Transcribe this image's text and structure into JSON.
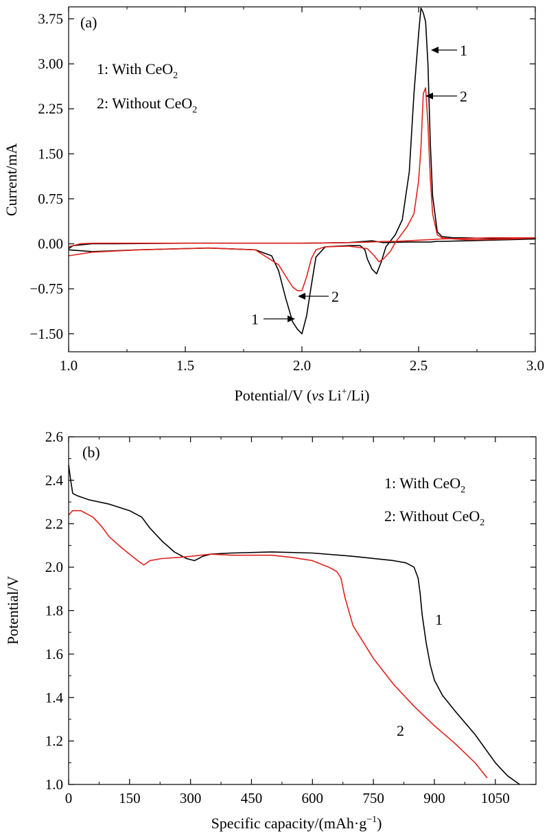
{
  "chart_data": [
    {
      "panel_label": "(a)",
      "type": "line",
      "xlabel": {
        "main": "Potential/V (",
        "italic": "vs",
        "mid": " Li",
        "sup": "+",
        "tail": "/Li)"
      },
      "ylabel": "Current/mA",
      "xlim": [
        1.0,
        3.0
      ],
      "ylim": [
        -1.8,
        3.95
      ],
      "xticks": [
        1.0,
        1.5,
        2.0,
        2.5,
        3.0
      ],
      "xtick_labels": [
        "1.0",
        "1.5",
        "2.0",
        "2.5",
        "3.0"
      ],
      "yticks": [
        -1.5,
        -0.75,
        0.0,
        0.75,
        1.5,
        2.25,
        3.0,
        3.75
      ],
      "ytick_labels": [
        "−1.50",
        "−0.75",
        "0.00",
        "0.75",
        "1.50",
        "2.25",
        "3.00",
        "3.75"
      ],
      "legend": [
        {
          "prefix": "1: With CeO",
          "sub": "2"
        },
        {
          "prefix": "2: Without CeO",
          "sub": "2"
        }
      ],
      "series": [
        {
          "label": "1",
          "color": "#000000",
          "x": [
            1.0,
            1.1,
            1.3,
            1.6,
            1.8,
            1.87,
            1.9,
            1.93,
            1.96,
            1.98,
            2.0,
            2.02,
            2.04,
            2.06,
            2.1,
            2.2,
            2.25,
            2.27,
            2.28,
            2.3,
            2.32,
            2.34,
            2.36,
            2.4,
            2.43,
            2.46,
            2.48,
            2.5,
            2.51,
            2.52,
            2.53,
            2.54,
            2.55,
            2.56,
            2.58,
            2.6,
            2.65,
            2.7,
            2.8,
            2.9,
            3.0,
            2.9,
            2.8,
            2.7,
            2.6,
            2.58,
            2.55,
            2.45,
            2.35,
            2.3,
            2.2,
            2.0,
            1.8,
            1.5,
            1.2,
            1.1,
            1.02,
            1.0
          ],
          "y": [
            -0.1,
            -0.13,
            -0.1,
            -0.07,
            -0.1,
            -0.2,
            -0.45,
            -0.9,
            -1.3,
            -1.42,
            -1.5,
            -1.2,
            -0.7,
            -0.22,
            -0.05,
            -0.03,
            -0.03,
            -0.1,
            -0.25,
            -0.42,
            -0.5,
            -0.3,
            -0.05,
            0.15,
            0.4,
            1.2,
            2.5,
            3.5,
            3.93,
            3.85,
            3.7,
            3.0,
            1.7,
            0.8,
            0.2,
            0.12,
            0.1,
            0.1,
            0.09,
            0.09,
            0.08,
            0.07,
            0.06,
            0.05,
            0.04,
            0.04,
            0.03,
            0.03,
            0.02,
            0.05,
            0.02,
            0.01,
            0.01,
            0.01,
            0.0,
            0.0,
            -0.03,
            -0.08
          ]
        },
        {
          "label": "2",
          "color": "#e0201a",
          "x": [
            1.0,
            1.1,
            1.3,
            1.6,
            1.8,
            1.9,
            1.94,
            1.96,
            1.98,
            2.0,
            2.02,
            2.04,
            2.06,
            2.1,
            2.2,
            2.28,
            2.31,
            2.33,
            2.35,
            2.38,
            2.4,
            2.45,
            2.48,
            2.5,
            2.51,
            2.52,
            2.53,
            2.54,
            2.55,
            2.56,
            2.58,
            2.6,
            2.65,
            2.7,
            2.8,
            2.9,
            3.0,
            2.9,
            2.8,
            2.7,
            2.6,
            2.55,
            2.45,
            2.4,
            2.35,
            2.3,
            2.2,
            2.0,
            1.8,
            1.5,
            1.2,
            1.1,
            1.05,
            1.0
          ],
          "y": [
            -0.2,
            -0.14,
            -0.1,
            -0.07,
            -0.1,
            -0.35,
            -0.6,
            -0.72,
            -0.78,
            -0.78,
            -0.55,
            -0.25,
            -0.1,
            -0.05,
            -0.04,
            -0.08,
            -0.2,
            -0.3,
            -0.25,
            -0.12,
            0.02,
            0.28,
            0.5,
            1.05,
            1.6,
            2.5,
            2.6,
            2.0,
            1.1,
            0.5,
            0.15,
            0.1,
            0.08,
            0.07,
            0.07,
            0.08,
            0.1,
            0.1,
            0.1,
            0.09,
            0.08,
            0.07,
            0.05,
            0.04,
            0.04,
            0.03,
            0.02,
            0.01,
            0.01,
            0.01,
            0.01,
            0.01,
            0.0,
            -0.05
          ]
        }
      ],
      "annotations": [
        "1",
        "2",
        "1",
        "2"
      ]
    },
    {
      "panel_label": "(b)",
      "type": "line",
      "xlabel": {
        "main": "Specific capacity/(mAh·g",
        "sup": "−1",
        "tail": ")"
      },
      "ylabel": "Potential/V",
      "xlim": [
        0,
        1150
      ],
      "ylim": [
        1.0,
        2.6
      ],
      "xticks": [
        0,
        150,
        300,
        450,
        600,
        750,
        900,
        1050
      ],
      "xtick_labels": [
        "0",
        "150",
        "300",
        "450",
        "600",
        "750",
        "900",
        "1050"
      ],
      "yticks": [
        1.0,
        1.2,
        1.4,
        1.6,
        1.8,
        2.0,
        2.2,
        2.4,
        2.6
      ],
      "ytick_labels": [
        "1.0",
        "1.2",
        "1.4",
        "1.6",
        "1.8",
        "2.0",
        "2.2",
        "2.4",
        "2.6"
      ],
      "legend": [
        {
          "prefix": "1: With CeO",
          "sub": "2"
        },
        {
          "prefix": "2: Without CeO",
          "sub": "2"
        }
      ],
      "series": [
        {
          "label": "1",
          "color": "#000000",
          "x": [
            0,
            5,
            10,
            20,
            50,
            100,
            150,
            180,
            200,
            230,
            260,
            290,
            310,
            330,
            350,
            400,
            500,
            600,
            700,
            800,
            830,
            850,
            860,
            865,
            870,
            880,
            890,
            900,
            920,
            950,
            1000,
            1050,
            1080,
            1110
          ],
          "y": [
            2.47,
            2.4,
            2.34,
            2.33,
            2.31,
            2.29,
            2.26,
            2.23,
            2.18,
            2.12,
            2.07,
            2.04,
            2.03,
            2.05,
            2.06,
            2.065,
            2.07,
            2.065,
            2.05,
            2.03,
            2.02,
            2.0,
            1.95,
            1.88,
            1.78,
            1.65,
            1.55,
            1.48,
            1.41,
            1.34,
            1.23,
            1.1,
            1.04,
            1.0
          ]
        },
        {
          "label": "2",
          "color": "#e0201a",
          "x": [
            0,
            10,
            30,
            60,
            80,
            100,
            130,
            150,
            170,
            185,
            200,
            230,
            270,
            300,
            350,
            400,
            500,
            550,
            600,
            640,
            660,
            670,
            680,
            700,
            750,
            800,
            850,
            900,
            950,
            1000,
            1030
          ],
          "y": [
            2.24,
            2.26,
            2.26,
            2.23,
            2.19,
            2.14,
            2.09,
            2.06,
            2.03,
            2.01,
            2.03,
            2.04,
            2.045,
            2.05,
            2.06,
            2.055,
            2.055,
            2.045,
            2.03,
            2.0,
            1.98,
            1.95,
            1.86,
            1.73,
            1.58,
            1.46,
            1.36,
            1.27,
            1.19,
            1.1,
            1.03
          ]
        }
      ],
      "annotations": [
        "1",
        "2"
      ]
    }
  ]
}
